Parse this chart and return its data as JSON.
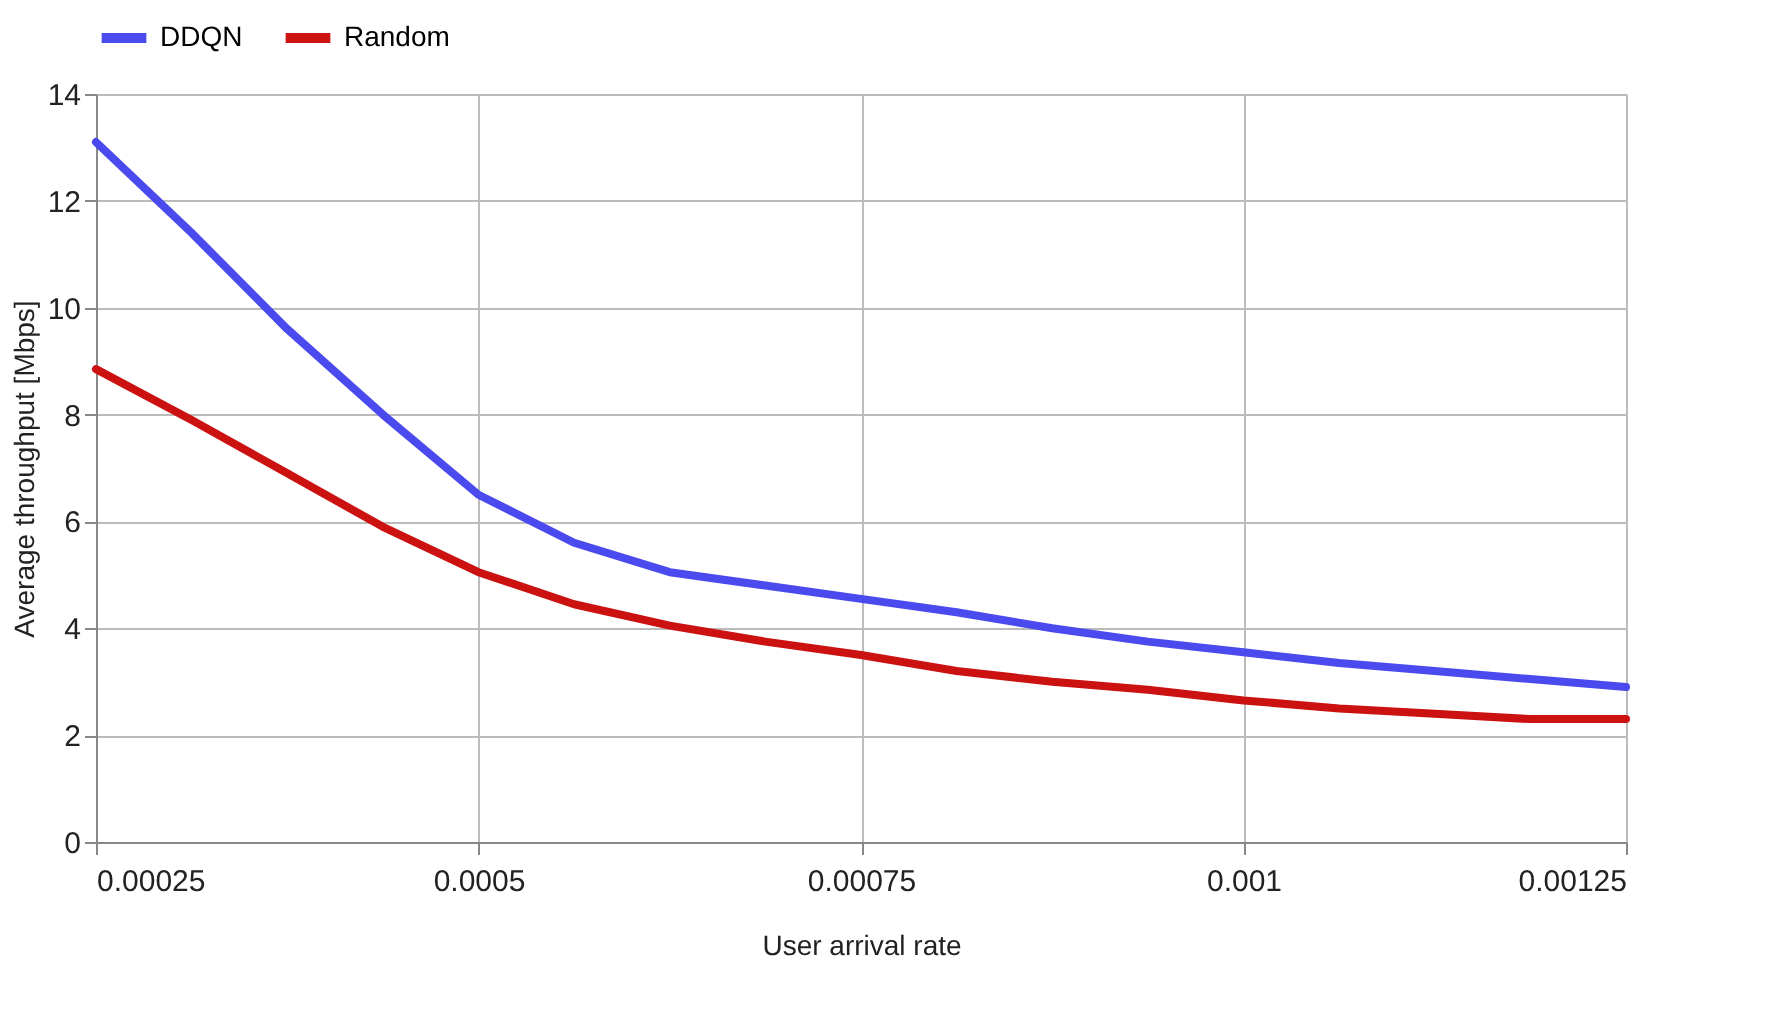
{
  "chart_data": {
    "type": "line",
    "xlabel": "User arrival rate",
    "ylabel": "Average throughput [Mbps]",
    "x": [
      0.00025,
      0.0003125,
      0.000375,
      0.0004375,
      0.0005,
      0.0005625,
      0.000625,
      0.0006875,
      0.00075,
      0.0008125,
      0.000875,
      0.0009375,
      0.001,
      0.0010625,
      0.001125,
      0.0011875,
      0.00125
    ],
    "series": [
      {
        "name": "DDQN",
        "color": "#4a4aee",
        "values": [
          13.1,
          11.4,
          9.6,
          8.0,
          6.5,
          5.6,
          5.05,
          4.8,
          4.55,
          4.3,
          4.0,
          3.75,
          3.55,
          3.35,
          3.2,
          3.05,
          2.9
        ]
      },
      {
        "name": "Random",
        "color": "#cc1111",
        "values": [
          8.85,
          7.9,
          6.9,
          5.9,
          5.05,
          4.45,
          4.05,
          3.75,
          3.5,
          3.2,
          3.0,
          2.85,
          2.65,
          2.5,
          2.4,
          2.3,
          2.3
        ]
      }
    ],
    "xlim": [
      0.00025,
      0.00125
    ],
    "xticks": [
      0.00025,
      0.0005,
      0.00075,
      0.001,
      0.00125
    ],
    "ylim": [
      0,
      14
    ],
    "yticks": [
      0,
      2,
      4,
      6,
      8,
      10,
      12,
      14
    ],
    "grid": true,
    "legend": "top",
    "marker": "none",
    "line_style": "solid"
  }
}
